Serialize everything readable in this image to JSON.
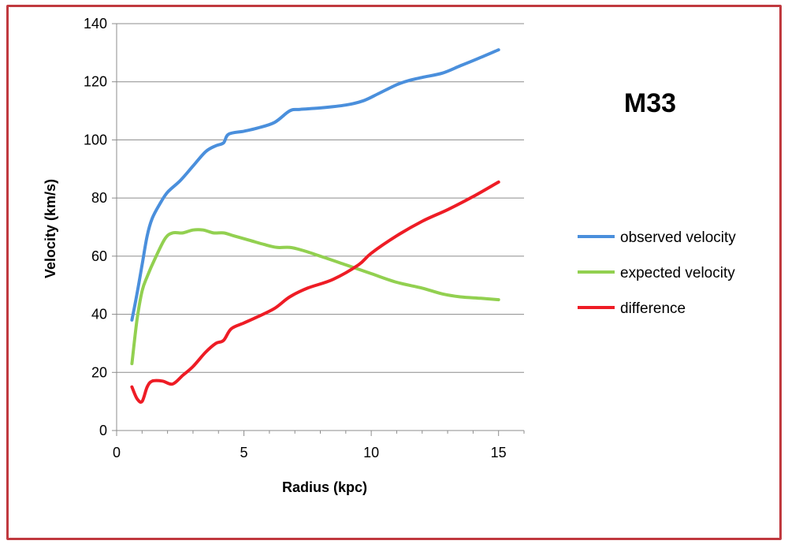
{
  "chart_data": {
    "type": "line",
    "title": "M33",
    "xlabel": "Radius (kpc)",
    "ylabel": "Velocity (km/s)",
    "xlim": [
      0,
      16
    ],
    "ylim": [
      0,
      140
    ],
    "xticks": [
      0,
      5,
      10,
      15
    ],
    "yticks": [
      0,
      20,
      40,
      60,
      80,
      100,
      120,
      140
    ],
    "grid": "horizontal",
    "legend": "right",
    "series": [
      {
        "name": "observed velocity",
        "color": "#4a8fdc",
        "x": [
          0.6,
          0.8,
          1.0,
          1.2,
          1.4,
          1.7,
          2.0,
          2.5,
          3.0,
          3.5,
          3.9,
          4.2,
          4.4,
          5.0,
          5.5,
          6.2,
          6.8,
          7.2,
          8.0,
          9.0,
          9.7,
          10.3,
          11.0,
          11.5,
          12.0,
          12.8,
          13.5,
          14.2,
          15.0
        ],
        "y": [
          38,
          47,
          57,
          67,
          73,
          78,
          82,
          86,
          91,
          96,
          98,
          99,
          102,
          103,
          104,
          106,
          110,
          110.5,
          111,
          112,
          113.5,
          116,
          119,
          120.5,
          121.5,
          123,
          125.5,
          128,
          131
        ]
      },
      {
        "name": "expected velocity",
        "color": "#92d050",
        "x": [
          0.6,
          0.8,
          1.0,
          1.2,
          1.5,
          1.9,
          2.2,
          2.6,
          3.0,
          3.4,
          3.8,
          4.2,
          4.6,
          5.2,
          5.8,
          6.3,
          6.8,
          7.3,
          8.0,
          9.0,
          10.0,
          11.0,
          12.0,
          12.8,
          13.5,
          14.3,
          15.0
        ],
        "y": [
          23,
          38,
          48,
          53,
          59,
          66,
          68,
          68,
          69,
          69,
          68,
          68,
          67,
          65.5,
          64,
          63,
          63,
          62,
          60,
          57,
          54,
          51,
          49,
          47,
          46,
          45.5,
          45
        ]
      },
      {
        "name": "difference",
        "color": "#ee1c25",
        "x": [
          0.6,
          0.8,
          1.0,
          1.2,
          1.4,
          1.8,
          2.2,
          2.6,
          3.0,
          3.5,
          3.9,
          4.2,
          4.5,
          5.0,
          5.5,
          6.2,
          6.8,
          7.5,
          8.5,
          9.5,
          10.0,
          11.0,
          12.0,
          13.0,
          14.0,
          15.0
        ],
        "y": [
          15,
          11,
          10,
          15,
          17,
          17,
          16,
          19,
          22,
          27,
          30,
          31,
          35,
          37,
          39,
          42,
          46,
          49,
          52,
          57,
          61,
          67,
          72,
          76,
          80.5,
          85.5
        ]
      }
    ]
  }
}
